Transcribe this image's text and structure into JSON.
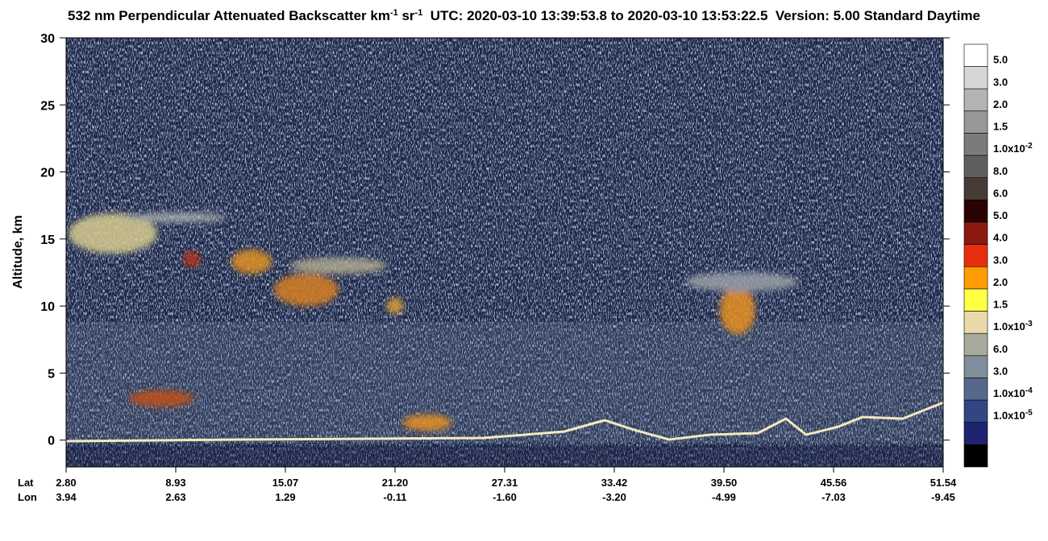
{
  "chart_data": {
    "type": "curtain",
    "title": [
      {
        "text": "532 nm Perpendicular Attenuated Backscatter km"
      },
      {
        "text": "-1",
        "sup": true
      },
      {
        "text": " sr"
      },
      {
        "text": "-1",
        "sup": true
      },
      {
        "text": "  UTC: 2020-03-10 13:39:53.8 to 2020-03-10 13:53:22.5  Version: 5.00 Standard Daytime"
      }
    ],
    "y_label": "Altitude, km",
    "ylim": [
      -2,
      30
    ],
    "yticks": [
      0,
      5,
      10,
      15,
      20,
      25,
      30
    ],
    "x_rows": [
      {
        "name": "Lat",
        "labels": [
          "2.80",
          "8.93",
          "15.07",
          "21.20",
          "27.31",
          "33.42",
          "39.50",
          "45.56",
          "51.54"
        ]
      },
      {
        "name": "Lon",
        "labels": [
          "3.94",
          "2.63",
          "1.29",
          "-0.11",
          "-1.60",
          "-3.20",
          "-4.99",
          "-7.03",
          "-9.45"
        ]
      }
    ],
    "colorbar": {
      "colors": [
        "#ffffff",
        "#d6d6d6",
        "#b3b3b3",
        "#979797",
        "#7b7b7b",
        "#5f5f5f",
        "#463b37",
        "#2b0303",
        "#8c1a12",
        "#e62f0e",
        "#ff9d00",
        "#ffff44",
        "#e8d8aa",
        "#a9aa9c",
        "#7f8e9a",
        "#56688c",
        "#334584",
        "#1f2470",
        "#000000"
      ],
      "labels": [
        {
          "text": "5.0"
        },
        {
          "text": "3.0"
        },
        {
          "text": "2.0"
        },
        {
          "text": "1.5"
        },
        {
          "text": "1.0x10",
          "sup": "-2"
        },
        {
          "text": "8.0"
        },
        {
          "text": "6.0"
        },
        {
          "text": "5.0"
        },
        {
          "text": "4.0"
        },
        {
          "text": "3.0"
        },
        {
          "text": "2.0"
        },
        {
          "text": "1.5"
        },
        {
          "text": "1.0x10",
          "sup": "-3"
        },
        {
          "text": "6.0"
        },
        {
          "text": "3.0"
        },
        {
          "text": "1.0x10",
          "sup": "-4"
        },
        {
          "text": "1.0x10",
          "sup": "-5"
        }
      ]
    }
  }
}
